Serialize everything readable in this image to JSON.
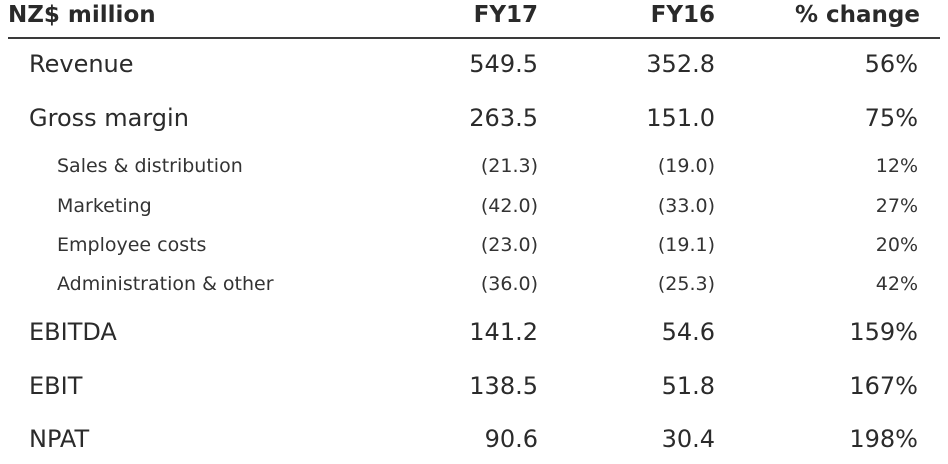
{
  "table": {
    "header": {
      "label": "NZ$ million",
      "col1": "FY17",
      "col2": "FY16",
      "col3": "% change"
    },
    "rows": [
      {
        "label": "Revenue",
        "fy17": "549.5",
        "fy16": "352.8",
        "change": "56%"
      },
      {
        "label": "Gross margin",
        "fy17": "263.5",
        "fy16": "151.0",
        "change": "75%"
      },
      {
        "label": "Sales & distribution",
        "fy17": "(21.3)",
        "fy16": "(19.0)",
        "change": "12%"
      },
      {
        "label": "Marketing",
        "fy17": "(42.0)",
        "fy16": "(33.0)",
        "change": "27%"
      },
      {
        "label": "Employee costs",
        "fy17": "(23.0)",
        "fy16": "(19.1)",
        "change": "20%"
      },
      {
        "label": "Administration & other",
        "fy17": "(36.0)",
        "fy16": "(25.3)",
        "change": "42%"
      },
      {
        "label": "EBITDA",
        "fy17": "141.2",
        "fy16": "54.6",
        "change": "159%"
      },
      {
        "label": "EBIT",
        "fy17": "138.5",
        "fy16": "51.8",
        "change": "167%"
      },
      {
        "label": "NPAT",
        "fy17": "90.6",
        "fy16": "30.4",
        "change": "198%"
      }
    ]
  }
}
